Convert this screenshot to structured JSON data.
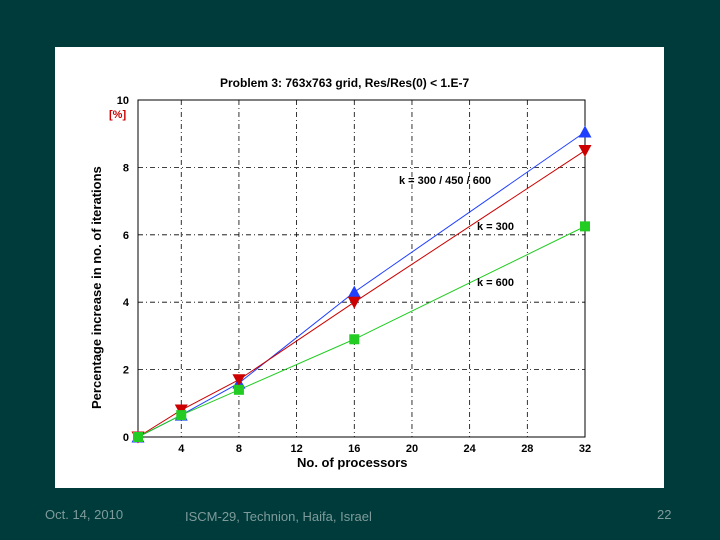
{
  "footer": {
    "date": "Oct. 14, 2010",
    "event": "ISCM-29, Technion, Haifa, Israel",
    "page": "22"
  },
  "colors": {
    "background": "#003b3b",
    "panel": "#ffffff",
    "footer_text": "#7f9a9a"
  },
  "chart_data": {
    "type": "line",
    "title": "Problem 3:  763x763 grid,  Res/Res(0) < 1.E-7",
    "xlabel": "No. of processors",
    "ylabel": "Percentage increase in  no. of  iterations",
    "ylabel_unit": "[%]",
    "xlim": [
      1,
      32
    ],
    "ylim": [
      0,
      10
    ],
    "xticks": [
      4,
      8,
      12,
      16,
      20,
      24,
      28,
      32
    ],
    "yticks": [
      0,
      2,
      4,
      6,
      8,
      10
    ],
    "grid": true,
    "x": [
      1,
      4,
      8,
      16,
      32
    ],
    "series": [
      {
        "name": "k = 300 / 450 / 600",
        "marker": "triangle-up",
        "color": "#1f3fff",
        "values": [
          0,
          0.65,
          1.6,
          4.3,
          9.05
        ]
      },
      {
        "name": "k = 300",
        "marker": "triangle-down",
        "color": "#cc0000",
        "values": [
          0,
          0.8,
          1.7,
          4.0,
          8.5
        ]
      },
      {
        "name": "k = 600",
        "marker": "square",
        "color": "#22cc22",
        "values": [
          0,
          0.65,
          1.4,
          2.9,
          6.25
        ]
      }
    ],
    "annotations": [
      "k = 300 / 450 / 600",
      "k = 300",
      "k = 600"
    ]
  }
}
